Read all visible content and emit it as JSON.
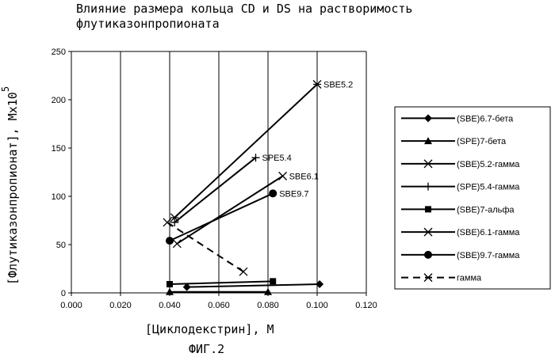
{
  "chart_data": {
    "type": "line",
    "title_line1": "Влияние размера кольца CD и DS на растворимость",
    "title_line2": "флутиказонпропионата",
    "xlabel": "[Циклодекстрин], M",
    "ylabel": "[Флутиказонпропионат], Mx10",
    "ylabel_exponent": "5",
    "caption": "ФИГ.2",
    "xlim": [
      0,
      0.12
    ],
    "ylim": [
      0,
      250
    ],
    "x_ticks": [
      "0.000",
      "0.020",
      "0.040",
      "0.060",
      "0.080",
      "0.100",
      "0.120"
    ],
    "y_ticks": [
      "0",
      "50",
      "100",
      "150",
      "200",
      "250"
    ],
    "grid": "vertical",
    "legend_position": "right",
    "series": [
      {
        "name": "(SBE)6.7-бета",
        "marker": "diamond",
        "dash": false,
        "x": [
          0.047,
          0.101
        ],
        "y": [
          6,
          9
        ],
        "label": ""
      },
      {
        "name": "(SPE)7-бета",
        "marker": "triangle",
        "dash": false,
        "x": [
          0.04,
          0.08
        ],
        "y": [
          1,
          1
        ],
        "label": ""
      },
      {
        "name": "(SBE)5.2-гамма",
        "marker": "asterisk",
        "dash": false,
        "x": [
          0.042,
          0.1
        ],
        "y": [
          78,
          216
        ],
        "label": "SBE5.2"
      },
      {
        "name": "(SPE)5.4-гамма",
        "marker": "plus",
        "dash": false,
        "x": [
          0.042,
          0.075
        ],
        "y": [
          73,
          140
        ],
        "label": "SPE5.4"
      },
      {
        "name": "(SBE)7-альфа",
        "marker": "square",
        "dash": false,
        "x": [
          0.04,
          0.082
        ],
        "y": [
          9,
          12
        ],
        "label": ""
      },
      {
        "name": "(SBE)6.1-гамма",
        "marker": "x",
        "dash": false,
        "x": [
          0.043,
          0.086
        ],
        "y": [
          51,
          121
        ],
        "label": "SBE6.1"
      },
      {
        "name": "(SBE)9.7-гамма",
        "marker": "circle",
        "dash": false,
        "x": [
          0.04,
          0.082
        ],
        "y": [
          54,
          103
        ],
        "label": "SBE9.7"
      },
      {
        "name": "гамма",
        "marker": "x",
        "dash": true,
        "x": [
          0.039,
          0.07
        ],
        "y": [
          73,
          22
        ],
        "label": ""
      }
    ]
  }
}
